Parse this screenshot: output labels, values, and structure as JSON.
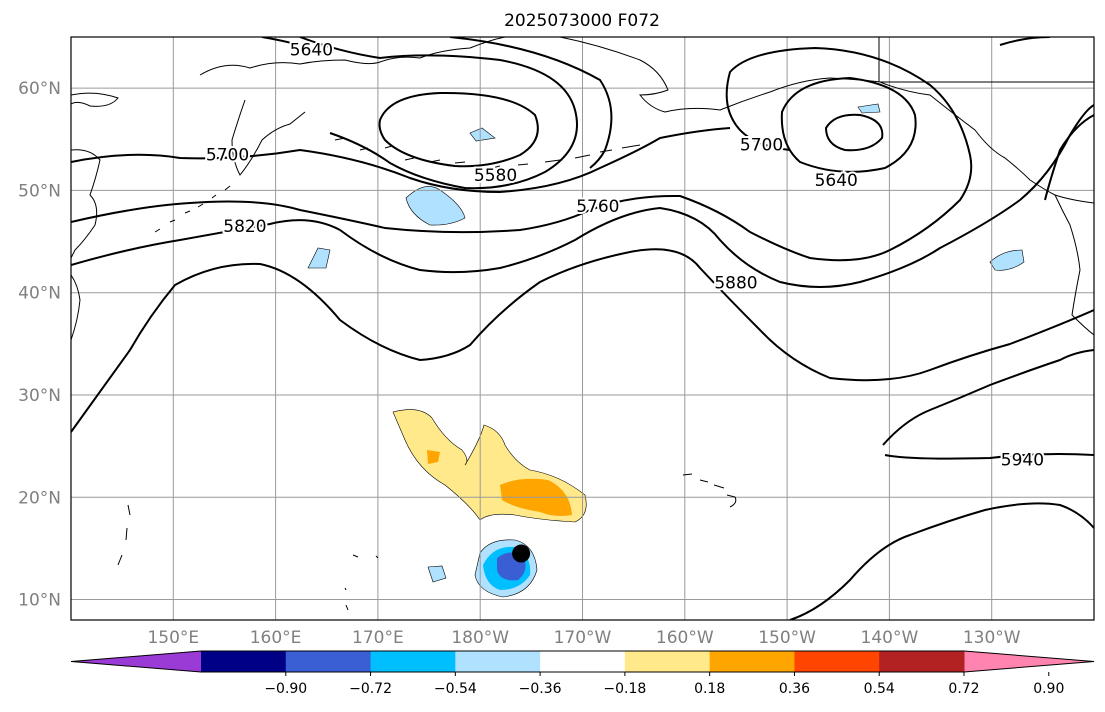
{
  "figure": {
    "title": "2025073000 F072"
  },
  "map": {
    "lon_range": [
      140,
      240
    ],
    "lat_range": [
      8,
      65
    ],
    "projection": "PlateCarree",
    "gridlines": true,
    "x_ticks": [
      {
        "lon": 150,
        "label": "150°E"
      },
      {
        "lon": 160,
        "label": "160°E"
      },
      {
        "lon": 170,
        "label": "170°E"
      },
      {
        "lon": 180,
        "label": "180°W"
      },
      {
        "lon": 190,
        "label": "170°W"
      },
      {
        "lon": 200,
        "label": "160°W"
      },
      {
        "lon": 210,
        "label": "150°W"
      },
      {
        "lon": 220,
        "label": "140°W"
      },
      {
        "lon": 230,
        "label": "130°W"
      }
    ],
    "y_ticks": [
      {
        "lat": 10,
        "label": "10°N"
      },
      {
        "lat": 20,
        "label": "20°N"
      },
      {
        "lat": 30,
        "label": "30°N"
      },
      {
        "lat": 40,
        "label": "40°N"
      },
      {
        "lat": 50,
        "label": "50°N"
      },
      {
        "lat": 60,
        "label": "60°N"
      }
    ],
    "contour_labels": [
      {
        "text": "5580",
        "lon": 181.5,
        "lat": 51.5
      },
      {
        "text": "5640",
        "lon": 214.8,
        "lat": 51.0
      },
      {
        "text": "5700",
        "lon": 155.3,
        "lat": 53.5
      },
      {
        "text": "5700",
        "lon": 207.5,
        "lat": 54.5
      },
      {
        "text": "5760",
        "lon": 191.5,
        "lat": 48.5
      },
      {
        "text": "5820",
        "lon": 157.0,
        "lat": 46.5
      },
      {
        "text": "5880",
        "lon": 205.0,
        "lat": 41.0
      },
      {
        "text": "5940",
        "lon": 233.0,
        "lat": 23.7
      },
      {
        "text": "5640",
        "lon": 163.5,
        "lat": 63.8
      }
    ],
    "marker": {
      "name": "storm-center",
      "lon": 184.0,
      "lat": 14.5,
      "color": "#000000"
    }
  },
  "colorbar": {
    "ticks": [
      "−0.90",
      "−0.72",
      "−0.54",
      "−0.36",
      "−0.18",
      "0.18",
      "0.36",
      "0.54",
      "0.72",
      "0.90"
    ],
    "colors": [
      "#9a3bd6",
      "#000087",
      "#3a5ed3",
      "#00bfff",
      "#b0e2ff",
      "#ffffff",
      "#ffe98a",
      "#ffa500",
      "#ff4500",
      "#b22222",
      "#ff85b0"
    ]
  }
}
